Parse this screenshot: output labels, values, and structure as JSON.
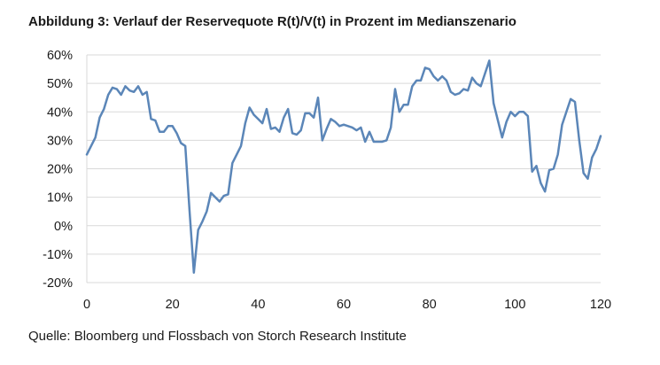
{
  "title": "Abbildung 3: Verlauf der Reservequote R(t)/V(t) in Prozent im Medianszenario",
  "source": "Quelle: Bloomberg und Flossbach von Storch Research Institute",
  "chart_data": {
    "type": "line",
    "xlim": [
      0,
      120
    ],
    "ylim": [
      -20,
      60
    ],
    "xticks": [
      0,
      20,
      40,
      60,
      80,
      100,
      120
    ],
    "yticks": [
      -20,
      -10,
      0,
      10,
      20,
      30,
      40,
      50,
      60
    ],
    "ytick_labels": [
      "-20%",
      "-10%",
      "0%",
      "10%",
      "20%",
      "30%",
      "40%",
      "50%",
      "60%"
    ],
    "grid": "horizontal",
    "line_color": "#5b86b8",
    "grid_color": "#d9d9d9",
    "x": [
      0,
      1,
      2,
      3,
      4,
      5,
      6,
      7,
      8,
      9,
      10,
      11,
      12,
      13,
      14,
      15,
      16,
      17,
      18,
      19,
      20,
      21,
      22,
      23,
      24,
      25,
      26,
      27,
      28,
      29,
      30,
      31,
      32,
      33,
      34,
      35,
      36,
      37,
      38,
      39,
      40,
      41,
      42,
      43,
      44,
      45,
      46,
      47,
      48,
      49,
      50,
      51,
      52,
      53,
      54,
      55,
      56,
      57,
      58,
      59,
      60,
      61,
      62,
      63,
      64,
      65,
      66,
      67,
      68,
      69,
      70,
      71,
      72,
      73,
      74,
      75,
      76,
      77,
      78,
      79,
      80,
      81,
      82,
      83,
      84,
      85,
      86,
      87,
      88,
      89,
      90,
      91,
      92,
      93,
      94,
      95,
      96,
      97,
      98,
      99,
      100,
      101,
      102,
      103,
      104,
      105,
      106,
      107,
      108,
      109,
      110,
      111,
      112,
      113,
      114,
      115,
      116,
      117,
      118,
      119,
      120
    ],
    "y": [
      25,
      28,
      31,
      38,
      41,
      46,
      48.5,
      48,
      46,
      49,
      47.5,
      47,
      49,
      46,
      47,
      37.5,
      37,
      33,
      33,
      35,
      35,
      32.5,
      29,
      28,
      5,
      -16.5,
      -1.5,
      1.5,
      5,
      11.5,
      10,
      8.5,
      10.5,
      11,
      22,
      25,
      28,
      36,
      41.5,
      39,
      37.5,
      36,
      41,
      34,
      34.5,
      33,
      38,
      41,
      32.5,
      32,
      33.5,
      39.5,
      39.5,
      38,
      45,
      30,
      34,
      37.5,
      36.5,
      35,
      35.5,
      35,
      34.5,
      33.5,
      34.5,
      29.5,
      33,
      29.5,
      29.5,
      29.5,
      30,
      34.5,
      48,
      40,
      42.5,
      42.5,
      49,
      51,
      51,
      55.5,
      55,
      52.5,
      51,
      52.5,
      51,
      47,
      46,
      46.5,
      48,
      47.5,
      52,
      50,
      49,
      53.5,
      58,
      43,
      37,
      31,
      36.5,
      40,
      38.5,
      40,
      40,
      38.5,
      19,
      21,
      15,
      12,
      19.5,
      20,
      25,
      35.5,
      40,
      44.5,
      43.5,
      30,
      18.5,
      16.5,
      24,
      27,
      31.5
    ]
  }
}
